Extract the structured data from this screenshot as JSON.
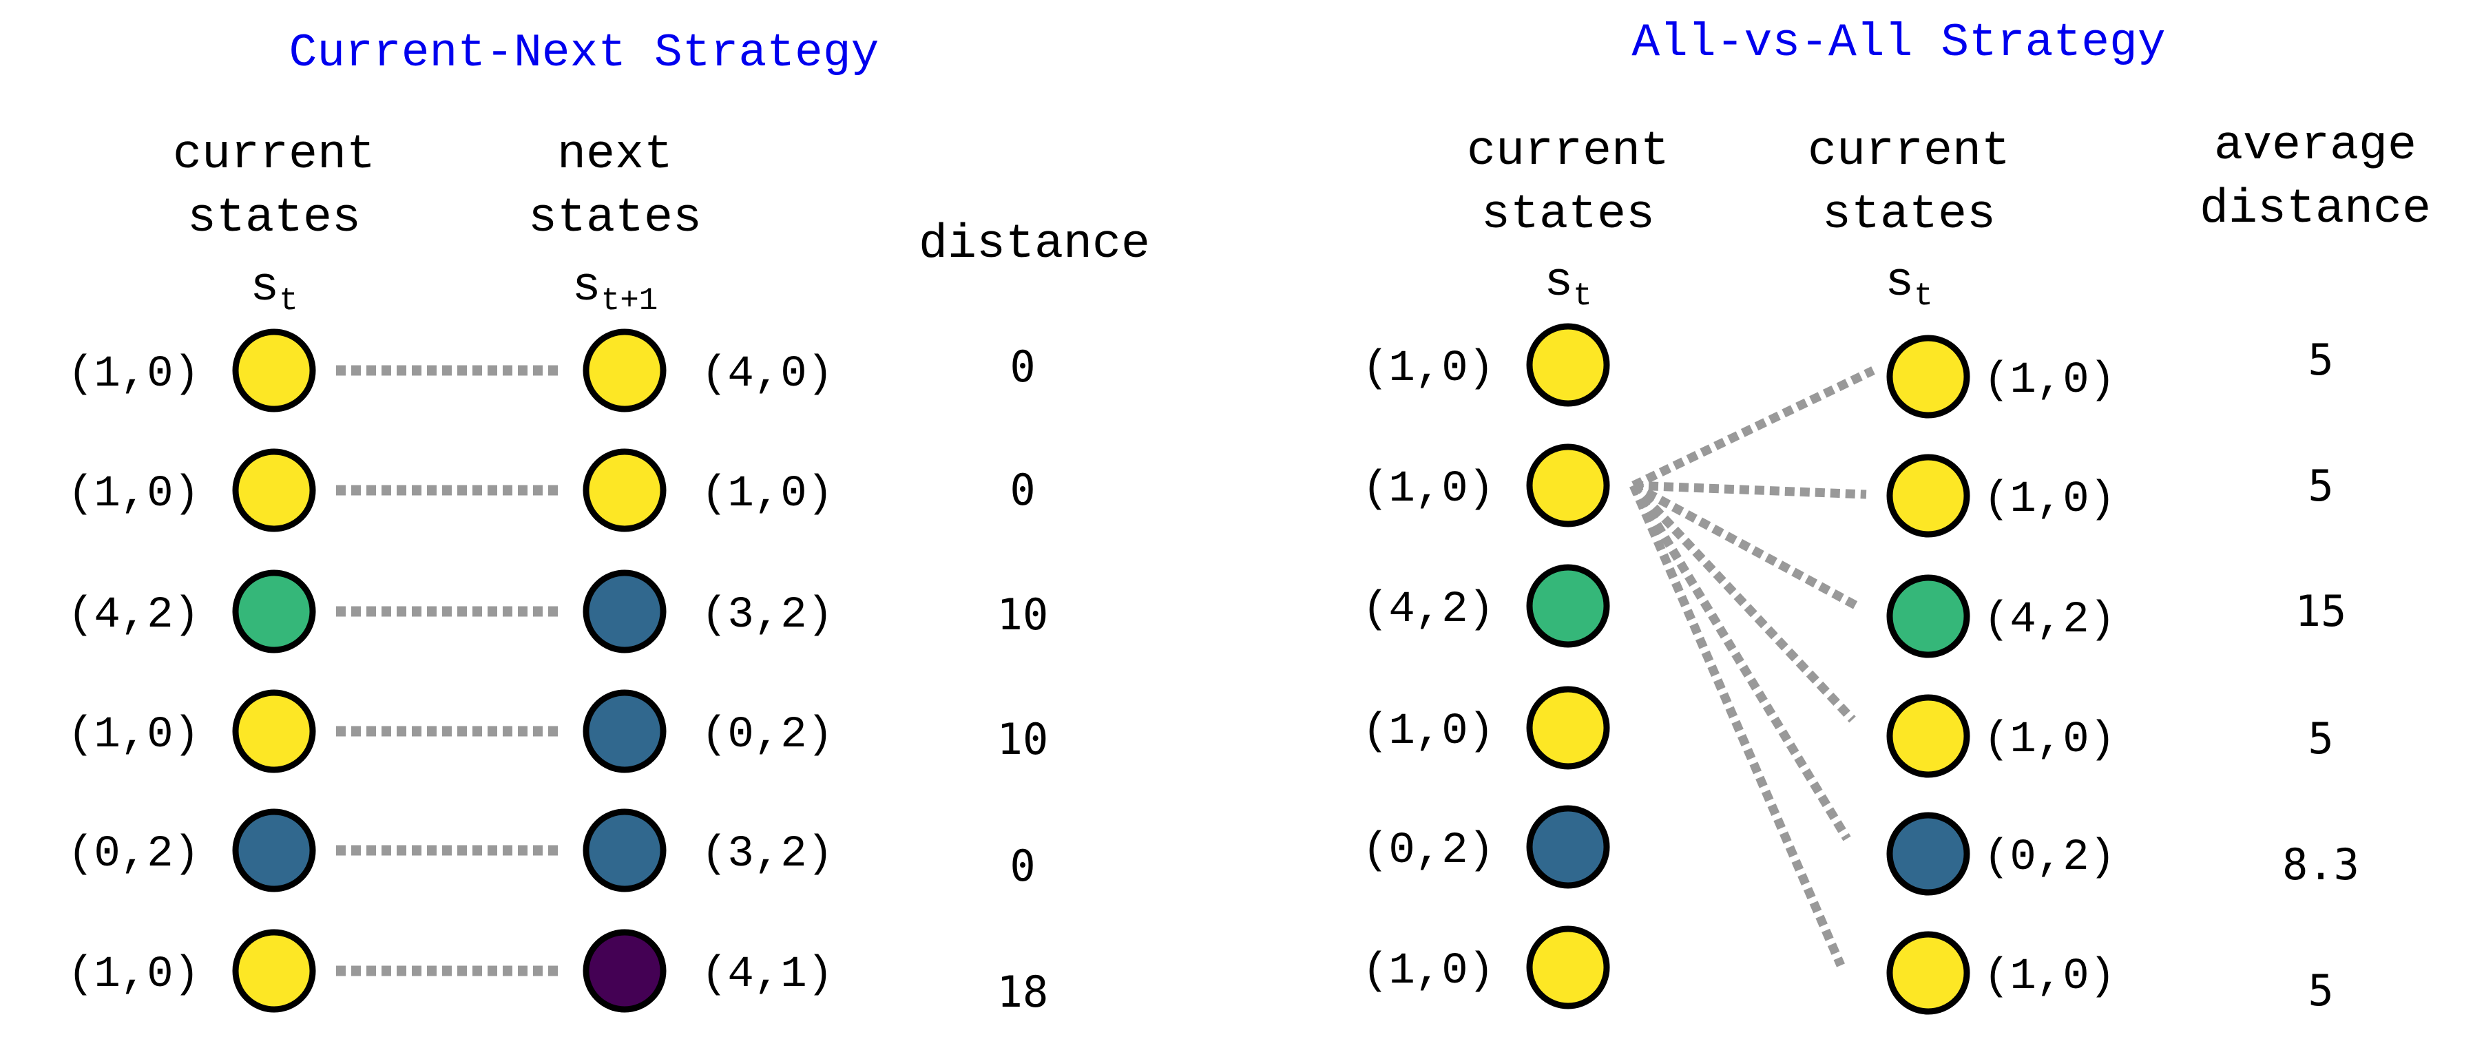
{
  "colors": {
    "title": "#0000ee",
    "yellow": "#fde725",
    "green": "#35b779",
    "blue": "#31688e",
    "purple": "#440154",
    "stroke": "#000000",
    "line": "#999999"
  },
  "left": {
    "title": "Current-Next Strategy",
    "col_current": {
      "line1": "current",
      "line2": "states",
      "symbol": "s",
      "subscript": "t"
    },
    "col_next": {
      "line1": "next",
      "line2": "states",
      "symbol": "s",
      "subscript": "t+1"
    },
    "col_distance": "distance",
    "rows": [
      {
        "current": "(1,0)",
        "current_color": "yellow",
        "next": "(4,0)",
        "next_color": "yellow",
        "distance": "0"
      },
      {
        "current": "(1,0)",
        "current_color": "yellow",
        "next": "(1,0)",
        "next_color": "yellow",
        "distance": "0"
      },
      {
        "current": "(4,2)",
        "current_color": "green",
        "next": "(3,2)",
        "next_color": "blue",
        "distance": "10"
      },
      {
        "current": "(1,0)",
        "current_color": "yellow",
        "next": "(0,2)",
        "next_color": "blue",
        "distance": "10"
      },
      {
        "current": "(0,2)",
        "current_color": "blue",
        "next": "(3,2)",
        "next_color": "blue",
        "distance": "0"
      },
      {
        "current": "(1,0)",
        "current_color": "yellow",
        "next": "(4,1)",
        "next_color": "purple",
        "distance": "18"
      }
    ]
  },
  "right": {
    "title": "All-vs-All Strategy",
    "col_current": {
      "line1": "current",
      "line2": "states",
      "symbol": "s",
      "subscript": "t"
    },
    "col_current2": {
      "line1": "current",
      "line2": "states",
      "symbol": "s",
      "subscript": "t"
    },
    "col_avg": {
      "line1": "average",
      "line2": "distance"
    },
    "fan_source_row": 1,
    "left_rows": [
      {
        "label": "(1,0)",
        "color": "yellow"
      },
      {
        "label": "(1,0)",
        "color": "yellow"
      },
      {
        "label": "(4,2)",
        "color": "green"
      },
      {
        "label": "(1,0)",
        "color": "yellow"
      },
      {
        "label": "(0,2)",
        "color": "blue"
      },
      {
        "label": "(1,0)",
        "color": "yellow"
      }
    ],
    "right_rows": [
      {
        "label": "(1,0)",
        "color": "yellow",
        "avg": "5"
      },
      {
        "label": "(1,0)",
        "color": "yellow",
        "avg": "5"
      },
      {
        "label": "(4,2)",
        "color": "green",
        "avg": "15"
      },
      {
        "label": "(1,0)",
        "color": "yellow",
        "avg": "5"
      },
      {
        "label": "(0,2)",
        "color": "blue",
        "avg": "8.3"
      },
      {
        "label": "(1,0)",
        "color": "yellow",
        "avg": "5"
      }
    ]
  }
}
